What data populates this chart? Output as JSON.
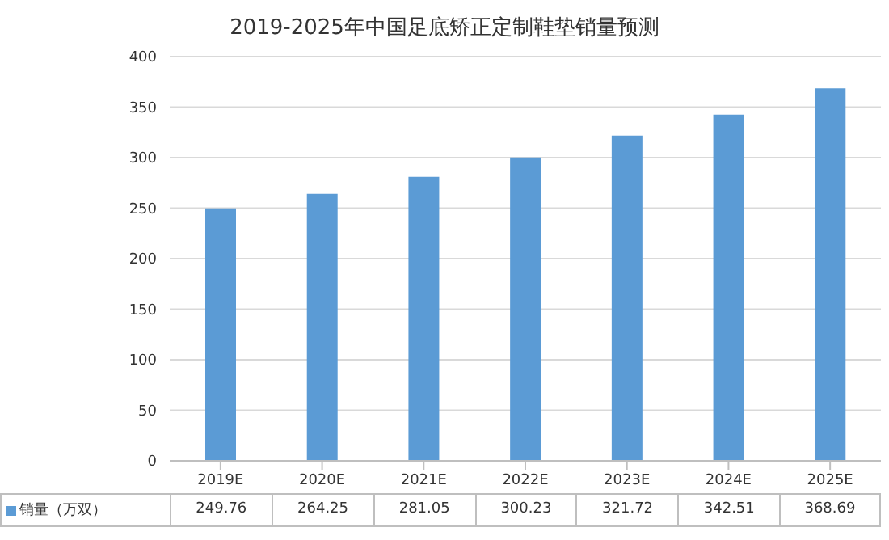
{
  "chart_data": {
    "type": "bar",
    "title": "2019-2025年中国足底矫正定制鞋垫销量预测",
    "categories": [
      "2019E",
      "2020E",
      "2021E",
      "2022E",
      "2023E",
      "2024E",
      "2025E"
    ],
    "series": [
      {
        "name": "销量（万双）",
        "color": "#5b9bd5",
        "values": [
          249.76,
          264.25,
          281.05,
          300.23,
          321.72,
          342.51,
          368.69
        ]
      }
    ],
    "ylim": [
      0,
      400
    ],
    "yticks": [
      0,
      50,
      100,
      150,
      200,
      250,
      300,
      350,
      400
    ],
    "grid": "y",
    "data_labels": true,
    "legend": "bottom"
  }
}
